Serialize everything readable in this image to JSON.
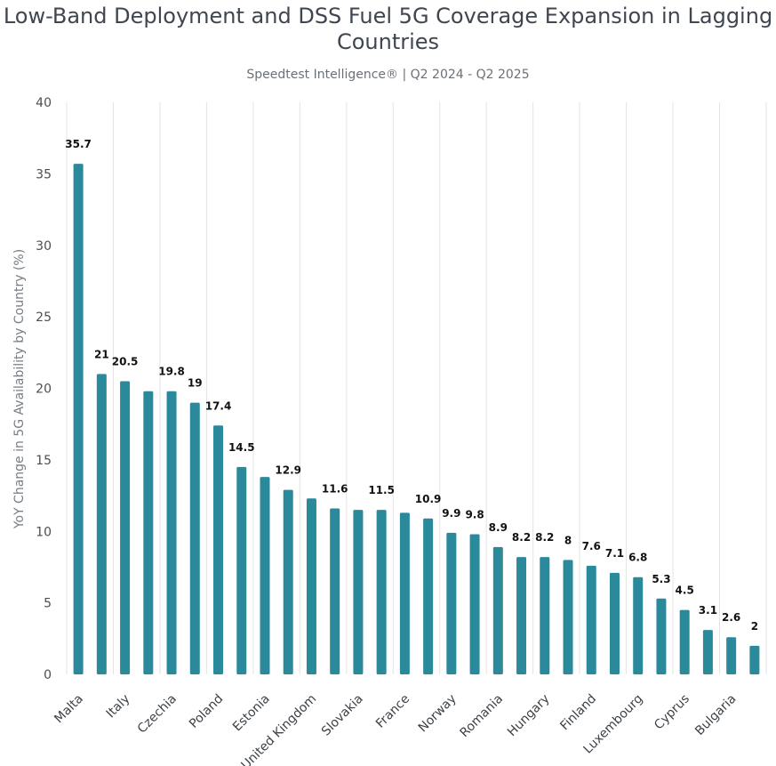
{
  "chart_data": {
    "type": "bar",
    "title": "Low-Band Deployment and DSS Fuel 5G Coverage Expansion in Lagging Countries",
    "subtitle": "Speedtest Intelligence® | Q2 2024 - Q2 2025",
    "xlabel": "",
    "ylabel": "YoY Change in 5G Availability by Country (%)",
    "ylim": [
      0,
      40
    ],
    "yticks": [
      0,
      5,
      10,
      15,
      20,
      25,
      30,
      35,
      40
    ],
    "grid": "vertical",
    "bar_color": "#2a8a9c",
    "categories": [
      "Malta",
      "",
      "Italy",
      "",
      "Czechia",
      "",
      "Poland",
      "",
      "Estonia",
      "",
      "United Kingdom",
      "",
      "Slovakia",
      "",
      "France",
      "",
      "Norway",
      "",
      "Romania",
      "",
      "Hungary",
      "",
      "Finland",
      "",
      "Luxembourg",
      "",
      "Cyprus",
      "",
      "Bulgaria",
      ""
    ],
    "values": [
      35.7,
      21,
      20.5,
      19.8,
      19.8,
      19,
      17.4,
      14.5,
      13.8,
      12.9,
      12.3,
      11.6,
      11.5,
      11.5,
      11.3,
      10.9,
      9.9,
      9.8,
      8.9,
      8.2,
      8.2,
      8,
      7.6,
      7.1,
      6.8,
      5.3,
      4.5,
      3.1,
      2.6,
      2
    ],
    "data_labels": [
      "35.7",
      "21",
      "20.5",
      "",
      "19.8",
      "19",
      "17.4",
      "14.5",
      "",
      "12.9",
      "",
      "11.6",
      "",
      "11.5",
      "",
      "10.9",
      "9.9",
      "9.8",
      "8.9",
      "8.2",
      "8.2",
      "8",
      "7.6",
      "7.1",
      "6.8",
      "5.3",
      "4.5",
      "3.1",
      "2.6",
      "2"
    ]
  }
}
